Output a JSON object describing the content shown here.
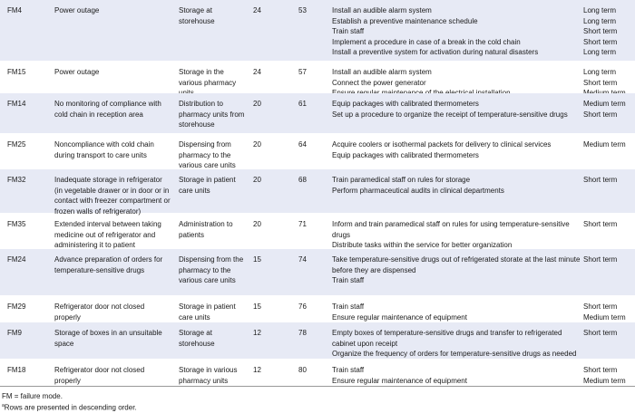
{
  "rows": [
    {
      "id": "FM4",
      "mode": "Power outage",
      "step": "Storage at storehouse",
      "s": "24",
      "score": "53",
      "shaded": true,
      "actions": [
        [
          "Install an audible alarm system",
          "Long term"
        ],
        [
          "Establish a preventive maintenance schedule",
          "Long term"
        ],
        [
          "Train staff",
          "Short term"
        ],
        [
          "Implement a procedure in case of a break in the cold chain",
          "Short term"
        ],
        [
          "Install a preventive system for activation during natural disasters",
          "Long term"
        ]
      ],
      "h": 68
    },
    {
      "id": "FM15",
      "mode": "Power outage",
      "step": "Storage in the various pharmacy units",
      "s": "24",
      "score": "57",
      "shaded": false,
      "actions": [
        [
          "Install an audible alarm system",
          "Long term"
        ],
        [
          "Connect the power generator",
          "Short term"
        ],
        [
          "Ensure regular maintenance of the electrical installation",
          "Medium term"
        ]
      ],
      "h": 35
    },
    {
      "id": "FM14",
      "mode": "No monitoring of compliance with cold chain in reception area",
      "step": "Distribution to pharmacy units from storehouse",
      "s": "20",
      "score": "61",
      "shaded": true,
      "actions": [
        [
          "Equip packages with calibrated thermometers",
          "Medium term"
        ],
        [
          "Set up a procedure to organize the receipt of temperature-sensitive drugs",
          "Short term"
        ]
      ],
      "h": 45
    },
    {
      "id": "FM25",
      "mode": "Noncompliance with cold chain during transport to care units",
      "step": "Dispensing from pharmacy to the various care units",
      "s": "20",
      "score": "64",
      "shaded": false,
      "actions": [
        [
          "Acquire coolers or isothermal packets for delivery to clinical services",
          "Medium term"
        ],
        [
          "Equip packages with calibrated thermometers",
          ""
        ]
      ],
      "h": 39
    },
    {
      "id": "FM32",
      "mode": "Inadequate storage in refrigerator (in vegetable drawer or in door or in contact with freezer compartment or frozen walls of refrigerator)",
      "step": "Storage in patient care units",
      "s": "20",
      "score": "68",
      "shaded": true,
      "actions": [
        [
          "Train paramedical staff on rules for storage",
          "Short term"
        ],
        [
          "Perform pharmaceutical audits in clinical departments",
          ""
        ]
      ],
      "h": 49
    },
    {
      "id": "FM35",
      "mode": "Extended interval between taking medicine out of refrigerator and administering it to patient",
      "step": "Administration to patients",
      "s": "20",
      "score": "71",
      "shaded": false,
      "actions": [
        [
          "Inform and train paramedical staff on rules for using temperature-sensitive drugs",
          "Short term"
        ],
        [
          "Distribute tasks within the service for better organization",
          ""
        ]
      ],
      "h": 39
    },
    {
      "id": "FM24",
      "mode": "Advance preparation of orders for temperature-sensitive drugs",
      "step": "Dispensing from the pharmacy to the various care units",
      "s": "15",
      "score": "74",
      "shaded": true,
      "actions": [
        [
          "Take temperature-sensitive drugs out of refrigerated storate at the last minute before they are dispensed",
          "Short term"
        ],
        [
          "Train staff",
          ""
        ]
      ],
      "h": 52
    },
    {
      "id": "FM29",
      "mode": "Refrigerator door not closed properly",
      "step": "Storage in patient care units",
      "s": "15",
      "score": "76",
      "shaded": false,
      "actions": [
        [
          "Train staff",
          "Short term"
        ],
        [
          "Ensure regular maintenance of equipment",
          "Medium term"
        ]
      ],
      "h": 29
    },
    {
      "id": "FM9",
      "mode": "Storage of boxes in an unsuitable space",
      "step": "Storage at storehouse",
      "s": "12",
      "score": "78",
      "shaded": true,
      "actions": [
        [
          "Empty boxes of temperature-sensitive drugs and transfer to refrigerated cabinet upon receipt",
          "Short term"
        ],
        [
          "Organize the frequency of orders for temperature-sensitive drugs as needed",
          ""
        ]
      ],
      "h": 41
    },
    {
      "id": "FM18",
      "mode": "Refrigerator door not closed properly",
      "step": "Storage in various pharmacy units",
      "s": "12",
      "score": "80",
      "shaded": false,
      "actions": [
        [
          "Train staff",
          "Short term"
        ],
        [
          "Ensure regular maintenance of equipment",
          "Medium term"
        ]
      ],
      "h": 29
    }
  ],
  "footnotes": {
    "abbrev": "FM = failure mode.",
    "sup": "a",
    "order": "Rows are presented in descending order."
  },
  "colors": {
    "shaded_row": "#e7eaf5"
  }
}
